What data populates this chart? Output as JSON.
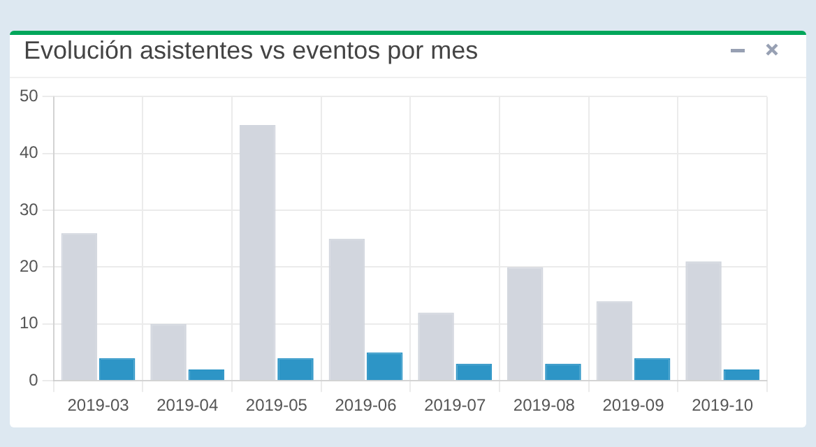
{
  "chart_data": {
    "type": "bar",
    "title": "Evolución asistentes vs eventos por mes",
    "categories": [
      "2019-03",
      "2019-04",
      "2019-05",
      "2019-06",
      "2019-07",
      "2019-08",
      "2019-09",
      "2019-10"
    ],
    "series": [
      {
        "color": "#d2d6de",
        "values": [
          26,
          10,
          45,
          25,
          12,
          20,
          14,
          21
        ]
      },
      {
        "color": "#2d95c6",
        "values": [
          4,
          2,
          4,
          5,
          3,
          3,
          4,
          2
        ]
      }
    ],
    "ylim": [
      0,
      50
    ],
    "yticks": [
      0,
      10,
      20,
      30,
      40,
      50
    ],
    "grid": true,
    "legend": false
  }
}
